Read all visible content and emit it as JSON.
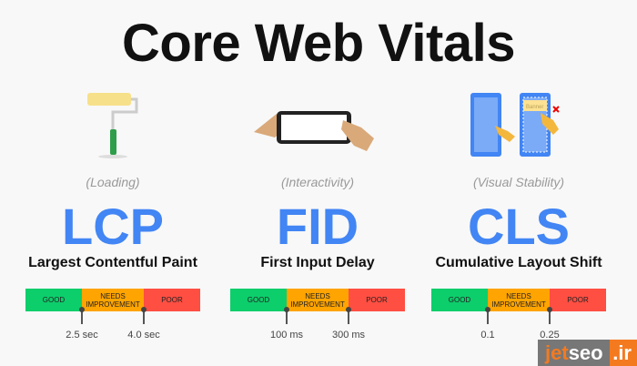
{
  "title": "Core Web Vitals",
  "metrics": [
    {
      "category": "(Loading)",
      "acronym": "LCP",
      "name": "Largest Contentful Paint",
      "icon": "paint-roller-icon",
      "thresholds": [
        "2.5 sec",
        "4.0 sec"
      ]
    },
    {
      "category": "(Interactivity)",
      "acronym": "FID",
      "name": "First Input Delay",
      "icon": "phone-tap-icon",
      "thresholds": [
        "100 ms",
        "300 ms"
      ]
    },
    {
      "category": "(Visual Stability)",
      "acronym": "CLS",
      "name": "Cumulative Layout Shift",
      "icon": "layout-shift-icon",
      "banner": "Banner",
      "thresholds": [
        "0.1",
        "0.25"
      ]
    }
  ],
  "bar": {
    "good": "GOOD",
    "needs": "NEEDS IMPROVEMENT",
    "poor": "POOR",
    "colors": {
      "good": "#0cce6b",
      "needs": "#ffa400",
      "poor": "#ff4e42"
    }
  },
  "watermark": {
    "part1": "jet",
    "part2": "seo",
    "part3": ".ir"
  }
}
